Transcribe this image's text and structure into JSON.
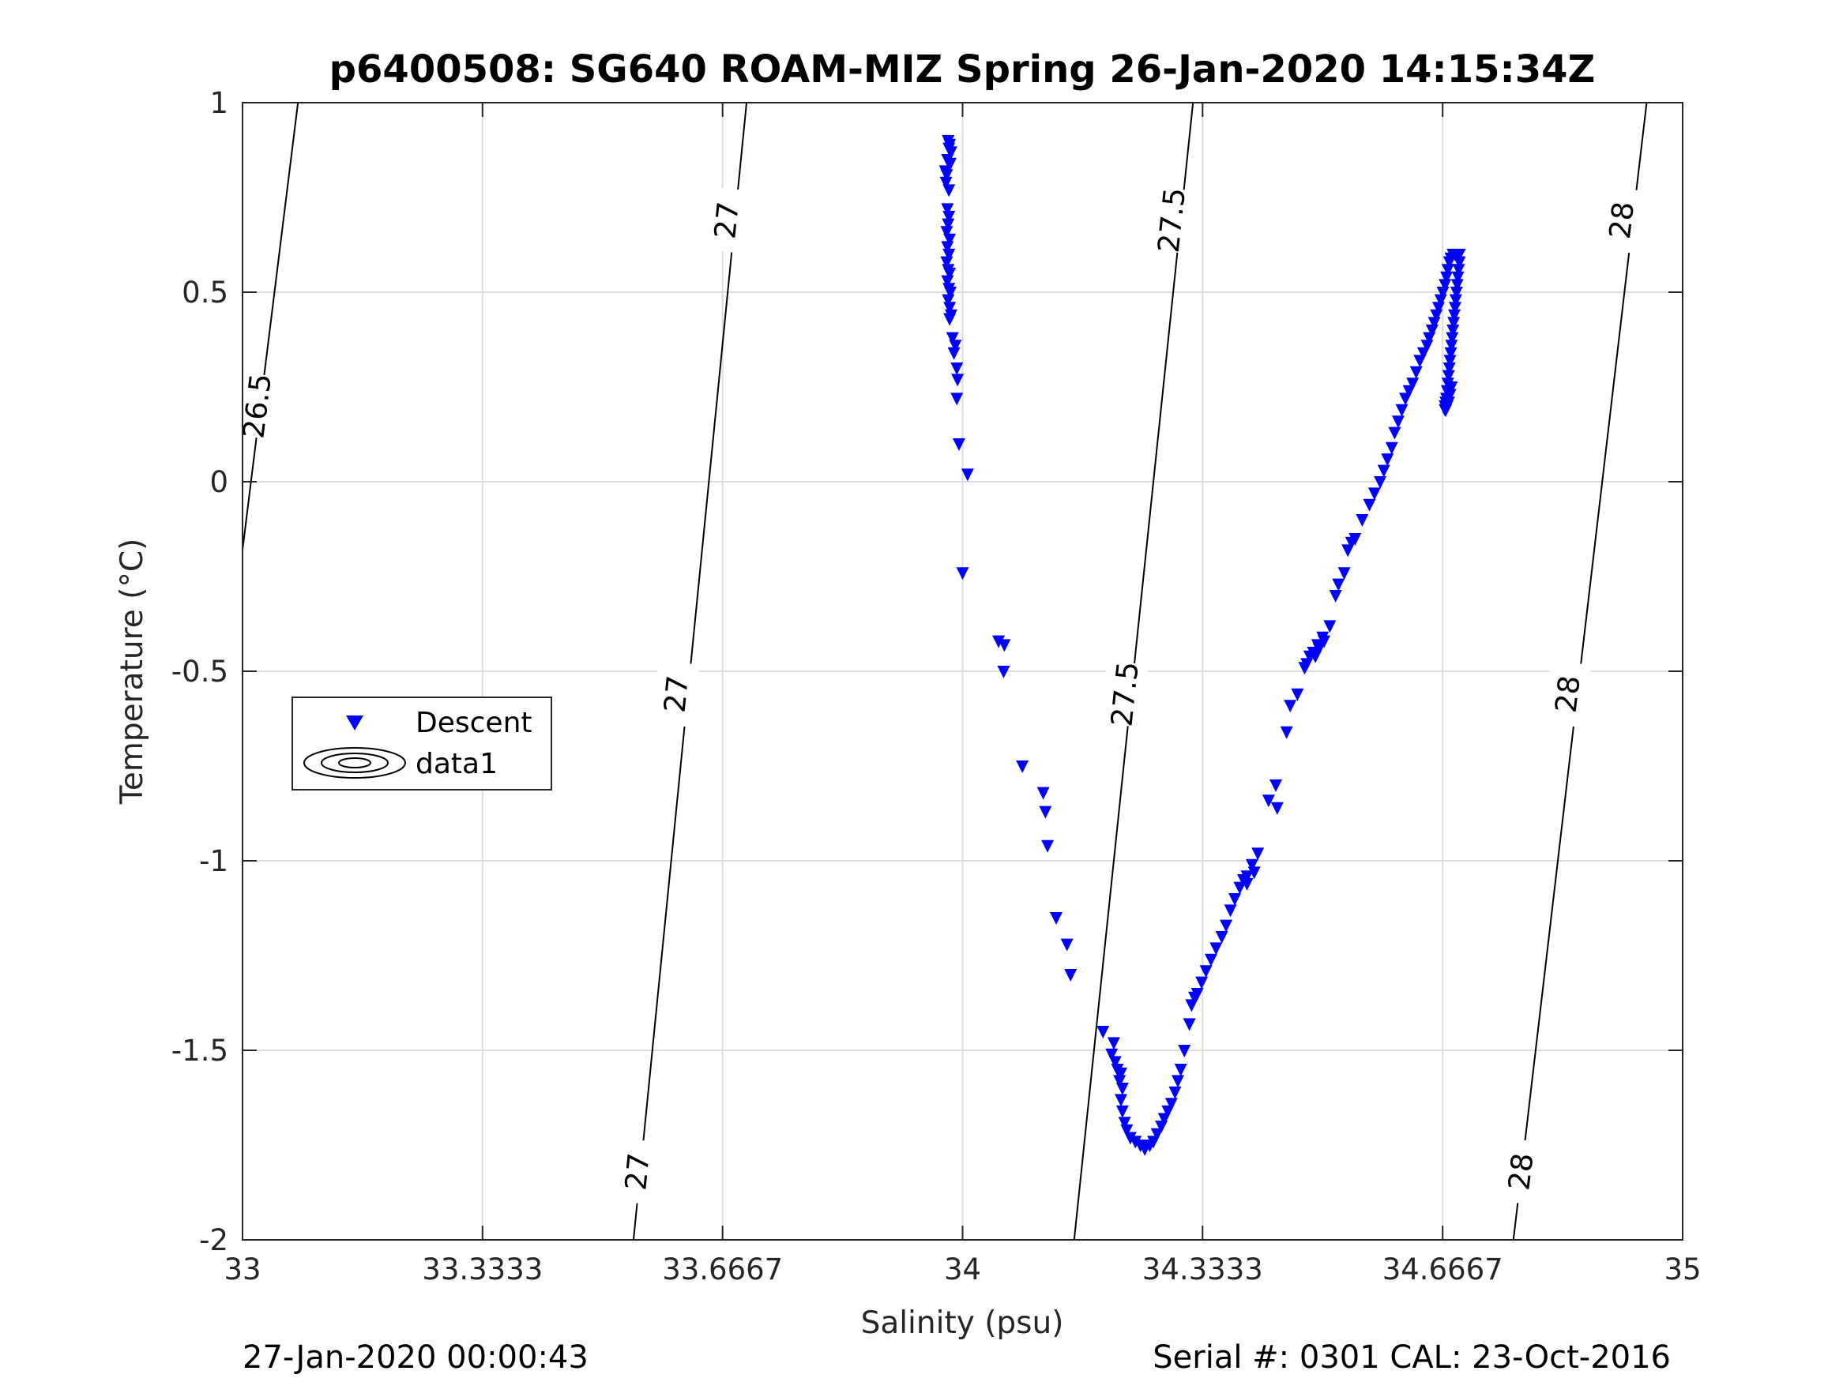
{
  "chart_data": {
    "type": "scatter",
    "title": "p6400508: SG640 ROAM-MIZ Spring 26-Jan-2020 14:15:34Z",
    "xlabel": "Salinity (psu)",
    "ylabel": "Temperature (°C)",
    "xlim": [
      33,
      35
    ],
    "ylim": [
      -2,
      1
    ],
    "xticks": [
      33,
      33.3333,
      33.6667,
      34,
      34.3333,
      34.6667,
      35
    ],
    "xtick_labels": [
      "33",
      "33.3333",
      "33.6667",
      "34",
      "34.3333",
      "34.6667",
      "35"
    ],
    "yticks": [
      -2,
      -1.5,
      -1,
      -0.5,
      0,
      0.5,
      1
    ],
    "ytick_labels": [
      "-2",
      "-1.5",
      "-1",
      "-0.5",
      "0",
      "0.5",
      "1"
    ],
    "grid": true,
    "legend": {
      "placement": "middle-left",
      "entries": [
        {
          "label": "Descent",
          "marker": "triangle-down",
          "color": "#0000ff"
        },
        {
          "label": "data1",
          "marker": "contour",
          "color": "#000000"
        }
      ]
    },
    "contours": [
      {
        "level": "26.5",
        "points": [
          [
            33.0,
            -0.18
          ],
          [
            33.077,
            1.0
          ]
        ],
        "labels": [
          {
            "x": 33.02,
            "y": 0.2
          }
        ]
      },
      {
        "level": "27",
        "points": [
          [
            33.543,
            -2.0
          ],
          [
            33.7,
            1.0
          ]
        ],
        "labels": [
          {
            "x": 33.548,
            "y": -1.82
          },
          {
            "x": 33.602,
            "y": -0.56
          },
          {
            "x": 33.672,
            "y": 0.69
          }
        ]
      },
      {
        "level": "27.5",
        "points": [
          [
            34.155,
            -2.0
          ],
          [
            34.32,
            1.0
          ]
        ],
        "labels": [
          {
            "x": 34.225,
            "y": -0.56
          },
          {
            "x": 34.29,
            "y": 0.69
          }
        ]
      },
      {
        "level": "28",
        "points": [
          [
            34.765,
            -2.0
          ],
          [
            34.95,
            1.0
          ]
        ],
        "labels": [
          {
            "x": 34.775,
            "y": -1.82
          },
          {
            "x": 34.84,
            "y": -0.56
          },
          {
            "x": 34.915,
            "y": 0.69
          }
        ]
      }
    ],
    "series": [
      {
        "name": "Descent",
        "marker": "triangle-down",
        "color": "#0000ff",
        "points": [
          [
            33.98,
            0.9
          ],
          [
            33.982,
            0.89
          ],
          [
            33.981,
            0.88
          ],
          [
            33.984,
            0.87
          ],
          [
            33.979,
            0.85
          ],
          [
            33.983,
            0.84
          ],
          [
            33.976,
            0.82
          ],
          [
            33.978,
            0.81
          ],
          [
            33.977,
            0.79
          ],
          [
            33.981,
            0.77
          ],
          [
            33.979,
            0.72
          ],
          [
            33.981,
            0.7
          ],
          [
            33.98,
            0.68
          ],
          [
            33.978,
            0.66
          ],
          [
            33.982,
            0.64
          ],
          [
            33.979,
            0.62
          ],
          [
            33.981,
            0.6
          ],
          [
            33.978,
            0.58
          ],
          [
            33.98,
            0.56
          ],
          [
            33.982,
            0.55
          ],
          [
            33.979,
            0.53
          ],
          [
            33.981,
            0.51
          ],
          [
            33.983,
            0.5
          ],
          [
            33.98,
            0.48
          ],
          [
            33.982,
            0.46
          ],
          [
            33.984,
            0.44
          ],
          [
            33.982,
            0.43
          ],
          [
            33.986,
            0.38
          ],
          [
            33.99,
            0.36
          ],
          [
            33.988,
            0.34
          ],
          [
            33.992,
            0.3
          ],
          [
            33.993,
            0.27
          ],
          [
            33.992,
            0.22
          ],
          [
            33.995,
            0.1
          ],
          [
            34.007,
            0.02
          ],
          [
            34.0,
            -0.24
          ],
          [
            34.05,
            -0.42
          ],
          [
            34.058,
            -0.43
          ],
          [
            34.057,
            -0.5
          ],
          [
            34.083,
            -0.75
          ],
          [
            34.112,
            -0.82
          ],
          [
            34.115,
            -0.87
          ],
          [
            34.118,
            -0.96
          ],
          [
            34.13,
            -1.15
          ],
          [
            34.145,
            -1.22
          ],
          [
            34.15,
            -1.3
          ],
          [
            34.195,
            -1.45
          ],
          [
            34.21,
            -1.48
          ],
          [
            34.207,
            -1.51
          ],
          [
            34.212,
            -1.53
          ],
          [
            34.215,
            -1.55
          ],
          [
            34.22,
            -1.56
          ],
          [
            34.218,
            -1.58
          ],
          [
            34.222,
            -1.6
          ],
          [
            34.22,
            -1.63
          ],
          [
            34.222,
            -1.66
          ],
          [
            34.225,
            -1.69
          ],
          [
            34.228,
            -1.71
          ],
          [
            34.233,
            -1.73
          ],
          [
            34.24,
            -1.74
          ],
          [
            34.247,
            -1.75
          ],
          [
            34.253,
            -1.76
          ],
          [
            34.26,
            -1.75
          ],
          [
            34.265,
            -1.74
          ],
          [
            34.27,
            -1.72
          ],
          [
            34.276,
            -1.7
          ],
          [
            34.28,
            -1.68
          ],
          [
            34.285,
            -1.66
          ],
          [
            34.29,
            -1.64
          ],
          [
            34.295,
            -1.61
          ],
          [
            34.299,
            -1.58
          ],
          [
            34.303,
            -1.55
          ],
          [
            34.308,
            -1.5
          ],
          [
            34.315,
            -1.43
          ],
          [
            34.318,
            -1.38
          ],
          [
            34.322,
            -1.36
          ],
          [
            34.326,
            -1.35
          ],
          [
            34.332,
            -1.32
          ],
          [
            34.338,
            -1.29
          ],
          [
            34.345,
            -1.26
          ],
          [
            34.352,
            -1.23
          ],
          [
            34.36,
            -1.2
          ],
          [
            34.366,
            -1.17
          ],
          [
            34.372,
            -1.13
          ],
          [
            34.378,
            -1.1
          ],
          [
            34.385,
            -1.07
          ],
          [
            34.39,
            -1.05
          ],
          [
            34.395,
            -1.04
          ],
          [
            34.402,
            -1.01
          ],
          [
            34.41,
            -0.98
          ],
          [
            34.405,
            -1.03
          ],
          [
            34.395,
            -1.06
          ],
          [
            34.425,
            -0.84
          ],
          [
            34.435,
            -0.8
          ],
          [
            34.437,
            -0.86
          ],
          [
            34.45,
            -0.66
          ],
          [
            34.455,
            -0.59
          ],
          [
            34.465,
            -0.56
          ],
          [
            34.475,
            -0.49
          ],
          [
            34.478,
            -0.48
          ],
          [
            34.482,
            -0.46
          ],
          [
            34.487,
            -0.45
          ],
          [
            34.493,
            -0.43
          ],
          [
            34.5,
            -0.41
          ],
          [
            34.51,
            -0.38
          ],
          [
            34.502,
            -0.42
          ],
          [
            34.495,
            -0.44
          ],
          [
            34.49,
            -0.46
          ],
          [
            34.518,
            -0.3
          ],
          [
            34.522,
            -0.27
          ],
          [
            34.53,
            -0.24
          ],
          [
            34.54,
            -0.16
          ],
          [
            34.535,
            -0.18
          ],
          [
            34.545,
            -0.15
          ],
          [
            34.555,
            -0.1
          ],
          [
            34.565,
            -0.06
          ],
          [
            34.572,
            -0.03
          ],
          [
            34.58,
            0.0
          ],
          [
            34.585,
            0.03
          ],
          [
            34.59,
            0.06
          ],
          [
            34.596,
            0.09
          ],
          [
            34.6,
            0.13
          ],
          [
            34.605,
            0.16
          ],
          [
            34.61,
            0.19
          ],
          [
            34.615,
            0.22
          ],
          [
            34.62,
            0.24
          ],
          [
            34.625,
            0.26
          ],
          [
            34.63,
            0.29
          ],
          [
            34.635,
            0.32
          ],
          [
            34.64,
            0.34
          ],
          [
            34.645,
            0.36
          ],
          [
            34.648,
            0.38
          ],
          [
            34.652,
            0.4
          ],
          [
            34.655,
            0.42
          ],
          [
            34.658,
            0.44
          ],
          [
            34.661,
            0.46
          ],
          [
            34.664,
            0.48
          ],
          [
            34.667,
            0.5
          ],
          [
            34.67,
            0.52
          ],
          [
            34.672,
            0.54
          ],
          [
            34.674,
            0.56
          ],
          [
            34.676,
            0.58
          ],
          [
            34.678,
            0.59
          ],
          [
            34.681,
            0.6
          ],
          [
            34.684,
            0.6
          ],
          [
            34.686,
            0.6
          ],
          [
            34.688,
            0.6
          ],
          [
            34.69,
            0.6
          ],
          [
            34.69,
            0.58
          ],
          [
            34.689,
            0.56
          ],
          [
            34.688,
            0.54
          ],
          [
            34.687,
            0.52
          ],
          [
            34.686,
            0.5
          ],
          [
            34.685,
            0.48
          ],
          [
            34.684,
            0.46
          ],
          [
            34.683,
            0.44
          ],
          [
            34.682,
            0.42
          ],
          [
            34.681,
            0.4
          ],
          [
            34.68,
            0.38
          ],
          [
            34.679,
            0.36
          ],
          [
            34.678,
            0.34
          ],
          [
            34.677,
            0.32
          ],
          [
            34.676,
            0.3
          ],
          [
            34.675,
            0.28
          ],
          [
            34.674,
            0.26
          ],
          [
            34.673,
            0.24
          ],
          [
            34.672,
            0.22
          ],
          [
            34.671,
            0.21
          ],
          [
            34.67,
            0.2
          ],
          [
            34.67,
            0.19
          ],
          [
            34.671,
            0.19
          ],
          [
            34.673,
            0.2
          ],
          [
            34.675,
            0.21
          ],
          [
            34.677,
            0.23
          ],
          [
            34.679,
            0.25
          ]
        ]
      }
    ]
  },
  "footer": {
    "left": "27-Jan-2020 00:00:43",
    "right": "Serial #: 0301  CAL: 23-Oct-2016"
  }
}
